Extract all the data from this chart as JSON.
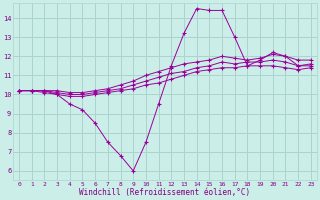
{
  "bg_color": "#cceee8",
  "grid_color": "#aad4ce",
  "line_color": "#990099",
  "xlabel": "Windchill (Refroidissement éolien,°C)",
  "ylabel_ticks": [
    6,
    7,
    8,
    9,
    10,
    11,
    12,
    13,
    14
  ],
  "xlim": [
    -0.5,
    23.5
  ],
  "ylim": [
    5.5,
    14.8
  ],
  "series": [
    {
      "x": [
        0,
        1,
        2,
        3,
        4,
        5,
        6,
        7,
        8,
        9,
        10,
        11,
        12,
        13,
        14,
        15,
        16,
        17,
        18,
        19,
        20,
        21,
        22,
        23
      ],
      "y": [
        10.2,
        10.2,
        10.2,
        10.0,
        9.5,
        9.2,
        8.5,
        7.5,
        6.8,
        6.0,
        7.5,
        9.5,
        11.5,
        13.2,
        14.5,
        14.4,
        14.4,
        13.0,
        11.5,
        11.8,
        12.2,
        12.0,
        11.5,
        11.5
      ]
    },
    {
      "x": [
        0,
        1,
        2,
        3,
        4,
        5,
        6,
        7,
        8,
        9,
        10,
        11,
        12,
        13,
        14,
        15,
        16,
        17,
        18,
        19,
        20,
        21,
        22,
        23
      ],
      "y": [
        10.2,
        10.2,
        10.1,
        10.0,
        9.9,
        9.9,
        10.0,
        10.1,
        10.2,
        10.3,
        10.5,
        10.6,
        10.8,
        11.0,
        11.2,
        11.3,
        11.4,
        11.4,
        11.5,
        11.5,
        11.5,
        11.4,
        11.3,
        11.4
      ]
    },
    {
      "x": [
        0,
        1,
        2,
        3,
        4,
        5,
        6,
        7,
        8,
        9,
        10,
        11,
        12,
        13,
        14,
        15,
        16,
        17,
        18,
        19,
        20,
        21,
        22,
        23
      ],
      "y": [
        10.2,
        10.2,
        10.2,
        10.1,
        10.0,
        10.0,
        10.1,
        10.2,
        10.3,
        10.5,
        10.7,
        10.9,
        11.1,
        11.2,
        11.4,
        11.5,
        11.7,
        11.6,
        11.7,
        11.7,
        11.8,
        11.7,
        11.5,
        11.6
      ]
    },
    {
      "x": [
        0,
        1,
        2,
        3,
        4,
        5,
        6,
        7,
        8,
        9,
        10,
        11,
        12,
        13,
        14,
        15,
        16,
        17,
        18,
        19,
        20,
        21,
        22,
        23
      ],
      "y": [
        10.2,
        10.2,
        10.2,
        10.2,
        10.1,
        10.1,
        10.2,
        10.3,
        10.5,
        10.7,
        11.0,
        11.2,
        11.4,
        11.6,
        11.7,
        11.8,
        12.0,
        11.9,
        11.8,
        11.9,
        12.1,
        12.0,
        11.8,
        11.8
      ]
    }
  ]
}
